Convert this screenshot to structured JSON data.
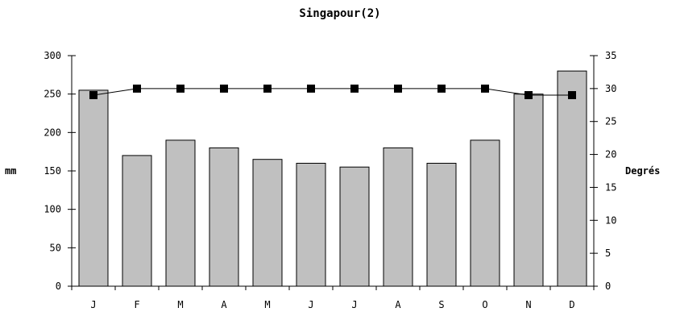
{
  "chart_data": {
    "type": "bar",
    "title": "Singapour(2)",
    "ylabel": "mm",
    "y2label": "Degrés",
    "categories": [
      "J",
      "F",
      "M",
      "A",
      "M",
      "J",
      "J",
      "A",
      "S",
      "O",
      "N",
      "D"
    ],
    "series": [
      {
        "kind": "bar",
        "axis": "left",
        "values": [
          255,
          170,
          190,
          180,
          165,
          160,
          155,
          180,
          160,
          190,
          250,
          280
        ]
      },
      {
        "kind": "line",
        "axis": "right",
        "values": [
          29,
          30,
          30,
          30,
          30,
          30,
          30,
          30,
          30,
          30,
          29,
          29
        ]
      }
    ],
    "ylim": [
      0,
      300
    ],
    "y2lim": [
      0,
      35
    ],
    "yticks": [
      0,
      50,
      100,
      150,
      200,
      250,
      300
    ],
    "y2ticks": [
      0,
      5,
      10,
      15,
      20,
      25,
      30,
      35
    ],
    "grid": false,
    "colors": {
      "bar_fill": "#c0c0c0",
      "bar_stroke": "#000000",
      "line": "#000000",
      "marker": "#000000"
    }
  }
}
